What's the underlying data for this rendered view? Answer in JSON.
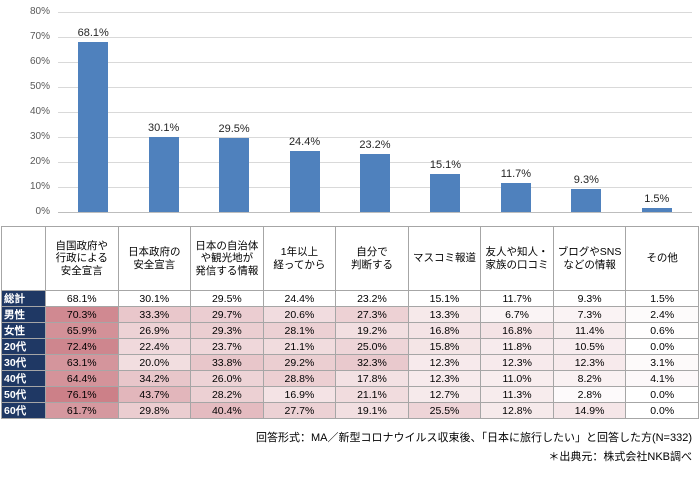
{
  "chart_data": {
    "type": "bar",
    "title": "",
    "categories": [
      "自国政府や行政による安全宣言",
      "日本政府の安全宣言",
      "日本の自治体や観光地が発信する情報",
      "1年以上経ってから",
      "自分で判断する",
      "マスコミ報道",
      "友人や知人・家族の口コミ",
      "ブログやSNSなどの情報",
      "その他"
    ],
    "values": [
      68.1,
      30.1,
      29.5,
      24.4,
      23.2,
      15.1,
      11.7,
      9.3,
      1.5
    ],
    "xlabel": "",
    "ylabel": "",
    "ylim": [
      0,
      80
    ],
    "yticks": [
      "0%",
      "10%",
      "20%",
      "30%",
      "40%",
      "50%",
      "60%",
      "70%",
      "80%"
    ],
    "grid": true,
    "legend": "none",
    "bar_color": "#4f81bd",
    "value_label_suffix": "%"
  },
  "table": {
    "corner_label": "",
    "col_headers": [
      "自国政府や\n行政による\n安全宣言",
      "日本政府の\n安全宣言",
      "日本の自治体\nや観光地が\n発信する情報",
      "1年以上\n経ってから",
      "自分で\n判断する",
      "マスコミ報道",
      "友人や知人・\n家族の口コミ",
      "ブログやSNS\nなどの情報",
      "その他"
    ],
    "rows": [
      {
        "label": "総計",
        "shaded": false,
        "values": [
          "68.1%",
          "30.1%",
          "29.5%",
          "24.4%",
          "23.2%",
          "15.1%",
          "11.7%",
          "9.3%",
          "1.5%"
        ]
      },
      {
        "label": "男性",
        "shaded": true,
        "values": [
          "70.3%",
          "33.3%",
          "29.7%",
          "20.6%",
          "27.3%",
          "13.3%",
          "6.7%",
          "7.3%",
          "2.4%"
        ]
      },
      {
        "label": "女性",
        "shaded": true,
        "values": [
          "65.9%",
          "26.9%",
          "29.3%",
          "28.1%",
          "19.2%",
          "16.8%",
          "16.8%",
          "11.4%",
          "0.6%"
        ]
      },
      {
        "label": "20代",
        "shaded": true,
        "values": [
          "72.4%",
          "22.4%",
          "23.7%",
          "21.1%",
          "25.0%",
          "15.8%",
          "11.8%",
          "10.5%",
          "0.0%"
        ]
      },
      {
        "label": "30代",
        "shaded": true,
        "values": [
          "63.1%",
          "20.0%",
          "33.8%",
          "29.2%",
          "32.3%",
          "12.3%",
          "12.3%",
          "12.3%",
          "3.1%"
        ]
      },
      {
        "label": "40代",
        "shaded": true,
        "values": [
          "64.4%",
          "34.2%",
          "26.0%",
          "28.8%",
          "17.8%",
          "12.3%",
          "11.0%",
          "8.2%",
          "4.1%"
        ]
      },
      {
        "label": "50代",
        "shaded": true,
        "values": [
          "76.1%",
          "43.7%",
          "28.2%",
          "16.9%",
          "21.1%",
          "12.7%",
          "11.3%",
          "2.8%",
          "0.0%"
        ]
      },
      {
        "label": "60代",
        "shaded": true,
        "values": [
          "61.7%",
          "29.8%",
          "40.4%",
          "27.7%",
          "19.1%",
          "25.5%",
          "12.8%",
          "14.9%",
          "0.0%"
        ]
      }
    ],
    "heat_max": 80,
    "heat_color": "#c97982"
  },
  "footer": {
    "line1": "回答形式：MA／新型コロナウイルス収束後、「日本に旅行したい」と回答した方(N=332)",
    "line2": "＊出典元：株式会社NKB調べ"
  }
}
